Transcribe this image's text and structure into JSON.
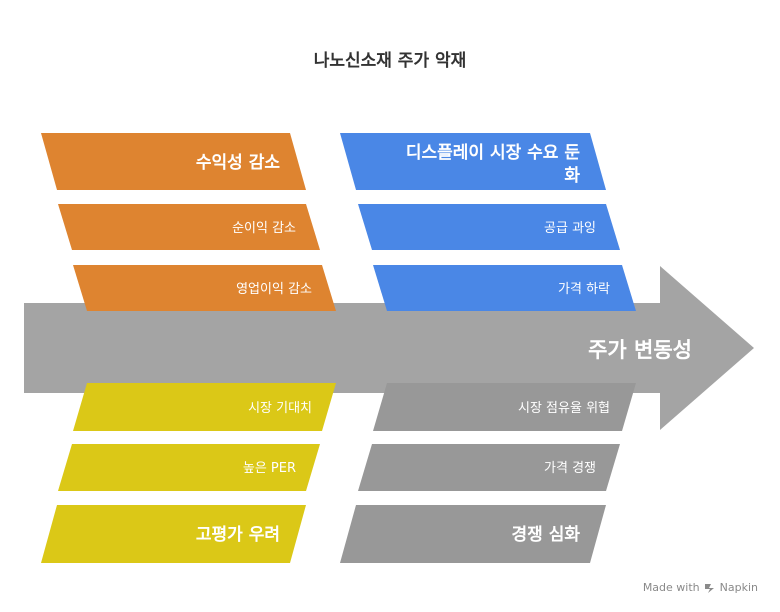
{
  "title": "나노신소재 주가 악재",
  "center": {
    "label": "주가 변동성"
  },
  "top_left": {
    "head": "수익성 감소",
    "items": [
      "순이익 감소",
      "영업이익 감소"
    ]
  },
  "top_right": {
    "head_line1": "디스플레이 시장 수요 둔",
    "head_line2": "화",
    "items": [
      "공급 과잉",
      "가격 하락"
    ]
  },
  "bottom_left": {
    "items": [
      "시장 기대치",
      "높은 PER"
    ],
    "head": "고평가 우려"
  },
  "bottom_right": {
    "items": [
      "시장 점유율 위협",
      "가격 경쟁"
    ],
    "head": "경쟁 심화"
  },
  "footer": {
    "made_with": "Made with",
    "brand": "Napkin",
    "brand_icon": "napkin-logo-icon"
  },
  "colors": {
    "orange": "#de8430",
    "blue": "#4a87e6",
    "yellow": "#dbc817",
    "gray": "#989898",
    "arrow": "#a4a4a4",
    "text_light": "#ffffff"
  }
}
